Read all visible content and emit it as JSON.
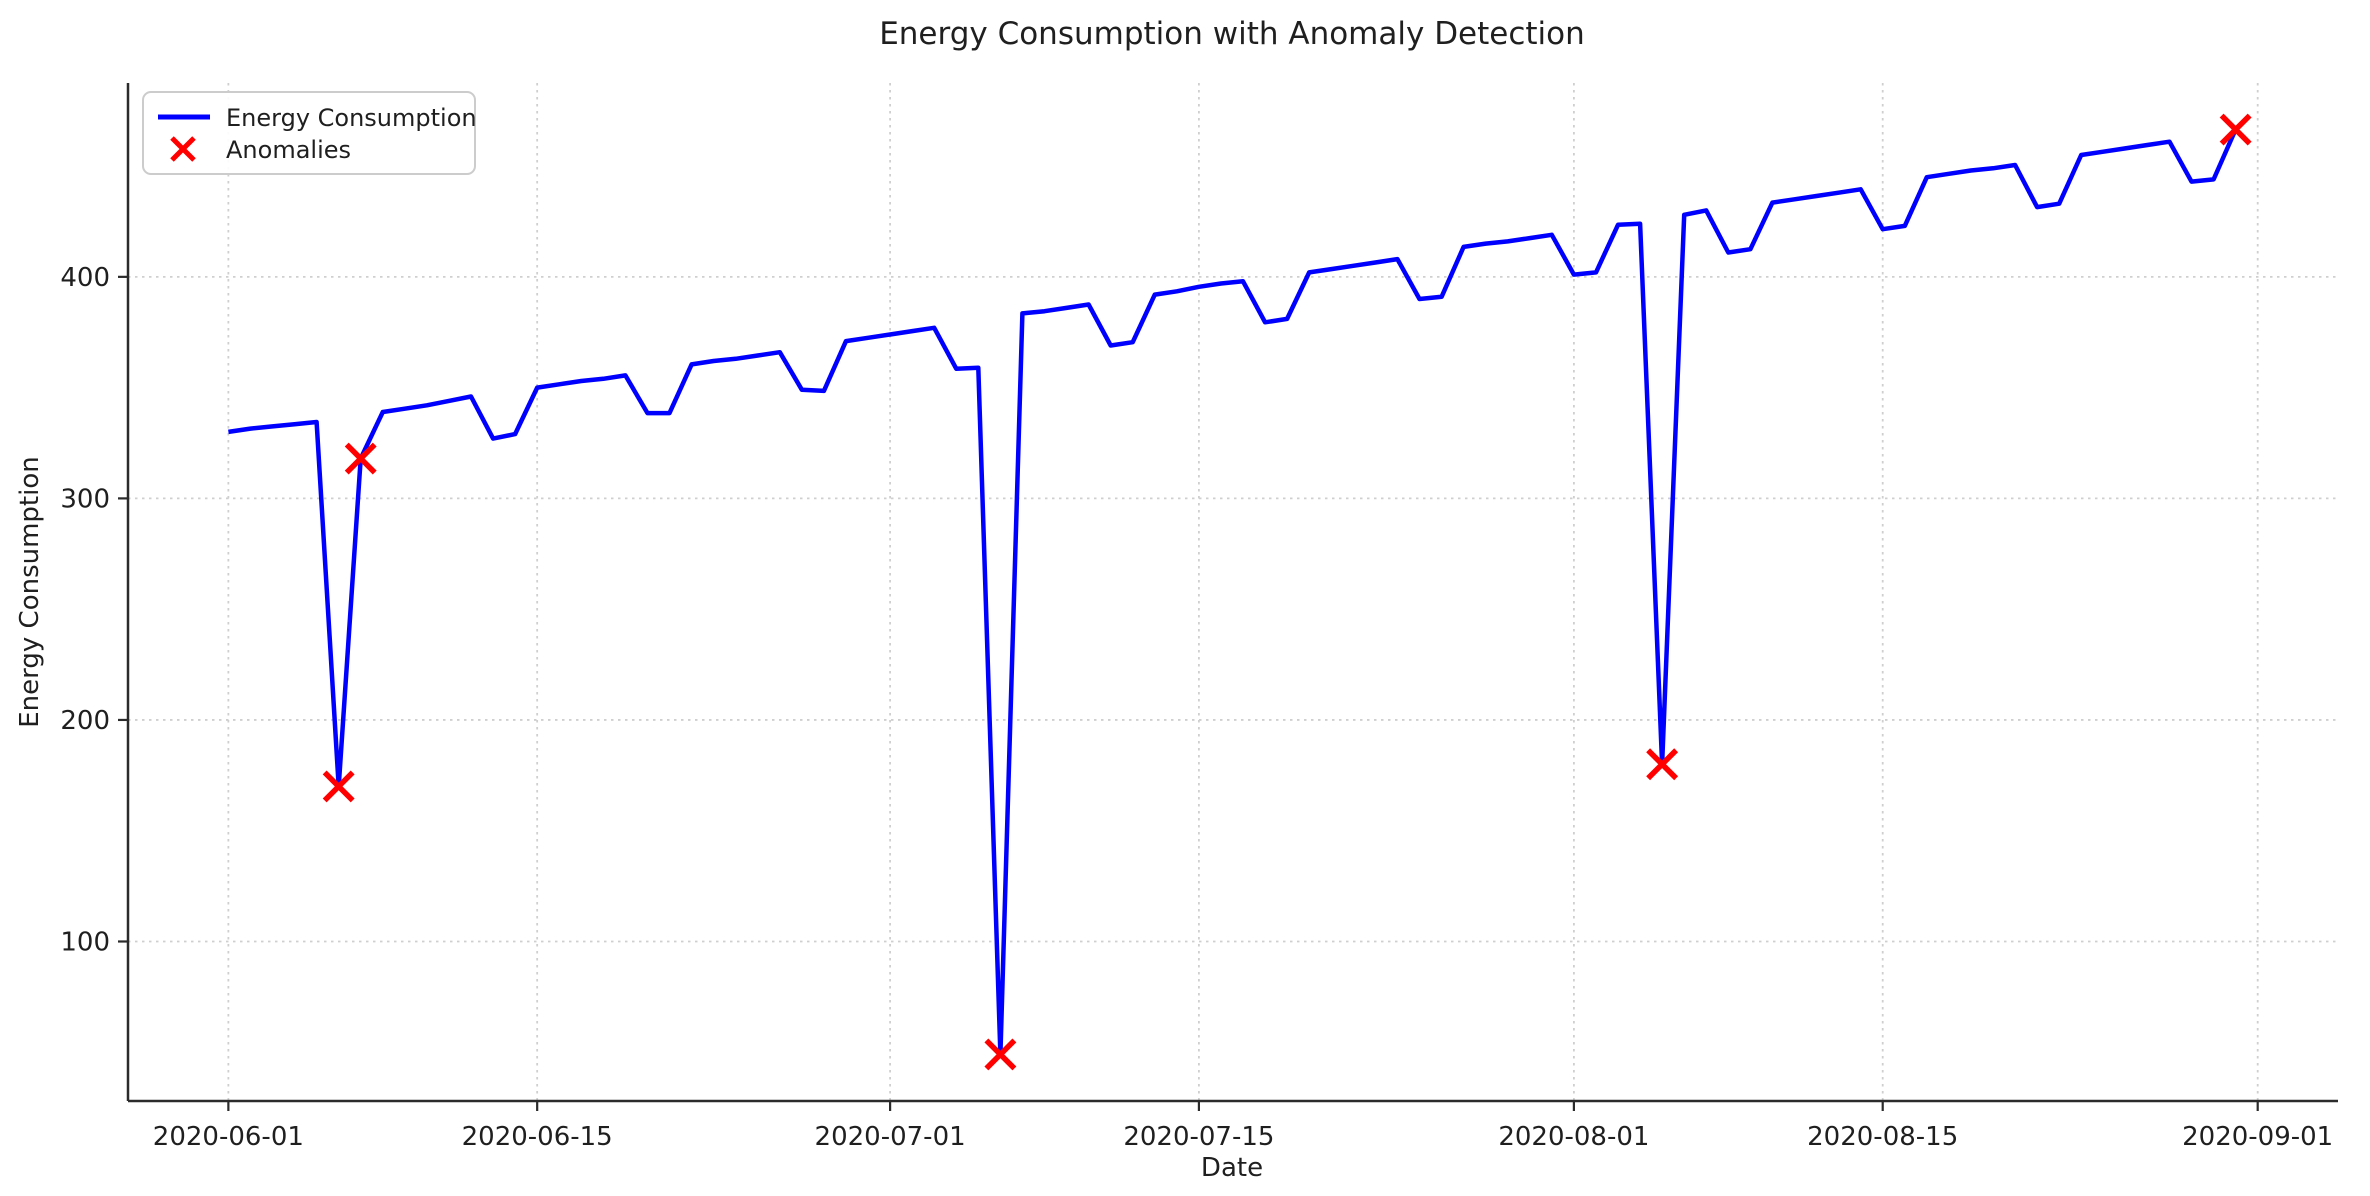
{
  "chart_data": {
    "type": "line",
    "title": "Energy Consumption with Anomaly Detection",
    "xlabel": "Date",
    "ylabel": "Energy Consumption",
    "grid": true,
    "legend_position": "upper left",
    "x_ticks": [
      {
        "date": "2020-06-01",
        "label": "2020-06-01"
      },
      {
        "date": "2020-06-15",
        "label": "2020-06-15"
      },
      {
        "date": "2020-07-01",
        "label": "2020-07-01"
      },
      {
        "date": "2020-07-15",
        "label": "2020-07-15"
      },
      {
        "date": "2020-08-01",
        "label": "2020-08-01"
      },
      {
        "date": "2020-08-15",
        "label": "2020-08-15"
      },
      {
        "date": "2020-09-01",
        "label": "2020-09-01"
      }
    ],
    "y_ticks": [
      100,
      200,
      300,
      400
    ],
    "xlim_days_from_start": [
      -4.55,
      95.55
    ],
    "ylim": [
      28,
      487.5
    ],
    "series": [
      {
        "name": "Energy Consumption",
        "color": "#0000ff",
        "start_date": "2020-06-01",
        "end_date": "2020-08-31",
        "frequency": "daily",
        "values": [
          330,
          331.5,
          332.5,
          333.5,
          334.5,
          170,
          318,
          339,
          340.5,
          342,
          344,
          346,
          327,
          329,
          350,
          351.5,
          353,
          354,
          355.5,
          338.5,
          338.5,
          360.5,
          362,
          363,
          364.5,
          366,
          349,
          348.5,
          371,
          372.5,
          374,
          375.5,
          377,
          358.5,
          359,
          49,
          383.5,
          384.5,
          386,
          387.5,
          369,
          370.5,
          392,
          393.5,
          395.5,
          397,
          398,
          379.5,
          381,
          402,
          403.5,
          405,
          406.5,
          408,
          390,
          391,
          413.5,
          415,
          416,
          417.5,
          419,
          401,
          402,
          423.5,
          424,
          180,
          428,
          430,
          411,
          412.5,
          433.5,
          435,
          436.5,
          438,
          439.5,
          421.5,
          423,
          445,
          446.5,
          448,
          449,
          450.5,
          431.5,
          433,
          455,
          456.5,
          458,
          459.5,
          461,
          443,
          444,
          466.5
        ]
      }
    ],
    "anomalies": {
      "name": "Anomalies",
      "color": "#ff0000",
      "points": [
        [
          "2020-06-06",
          170
        ],
        [
          "2020-06-07",
          318
        ],
        [
          "2020-07-06",
          49
        ],
        [
          "2020-08-05",
          180
        ],
        [
          "2020-08-31",
          466.5
        ]
      ]
    }
  }
}
